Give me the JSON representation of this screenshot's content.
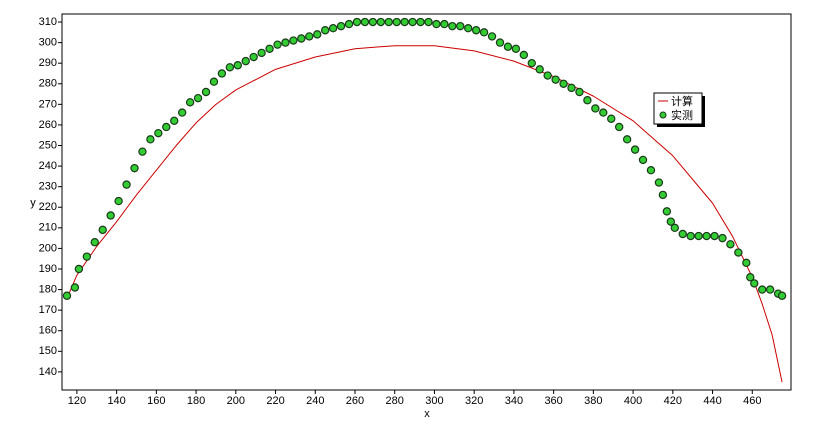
{
  "chart_data": {
    "type": "line",
    "x_label": "x",
    "y_label": "y",
    "xlim": [
      112.5,
      479.5
    ],
    "ylim": [
      131.2,
      313.9
    ],
    "xticks": [
      120,
      140,
      160,
      180,
      200,
      220,
      240,
      260,
      280,
      300,
      320,
      340,
      360,
      380,
      400,
      420,
      440,
      460
    ],
    "yticks": [
      140,
      150,
      160,
      170,
      180,
      190,
      200,
      210,
      220,
      230,
      240,
      250,
      260,
      270,
      280,
      290,
      300,
      310
    ],
    "legend": "right",
    "series": [
      {
        "name": "计算",
        "color": "#cc0000",
        "mode": "line",
        "x": [
          116,
          120,
          130,
          140,
          150,
          160,
          170,
          180,
          190,
          200,
          220,
          240,
          260,
          280,
          300,
          320,
          340,
          360,
          380,
          400,
          420,
          440,
          450,
          460,
          465,
          470,
          475
        ],
        "values": [
          178,
          187,
          201,
          213,
          226,
          238,
          250,
          261,
          270,
          277,
          287,
          293,
          297,
          298.5,
          298.5,
          296,
          291,
          283.5,
          274,
          262,
          245,
          222,
          206,
          186,
          173,
          158,
          135
        ]
      },
      {
        "name": "实测",
        "color": "#33cc33",
        "mode": "markers",
        "x": [
          115,
          119,
          121,
          125,
          129,
          133,
          137,
          141,
          145,
          149,
          153,
          157,
          161,
          165,
          169,
          173,
          177,
          181,
          185,
          189,
          193,
          197,
          201,
          205,
          209,
          213,
          217,
          221,
          225,
          229,
          233,
          237,
          241,
          245,
          249,
          253,
          257,
          261,
          265,
          269,
          273,
          277,
          281,
          285,
          289,
          293,
          297,
          301,
          305,
          309,
          313,
          317,
          321,
          325,
          329,
          333,
          337,
          341,
          345,
          349,
          353,
          357,
          361,
          365,
          369,
          373,
          377,
          381,
          385,
          389,
          393,
          397,
          401,
          405,
          409,
          413,
          415,
          417,
          419,
          421,
          425,
          429,
          433,
          437,
          441,
          445,
          449,
          453,
          457,
          459,
          461,
          465,
          469,
          473,
          475
        ],
        "values": [
          177,
          181,
          190,
          196,
          203,
          209,
          216,
          223,
          231,
          239,
          247,
          253,
          256,
          259,
          262,
          266,
          271,
          273,
          276,
          281,
          285,
          288,
          289,
          291,
          293,
          295,
          297,
          299,
          300,
          301,
          302,
          303,
          304,
          306,
          307,
          308,
          309,
          310,
          310,
          310,
          310,
          310,
          310,
          310,
          310,
          310,
          310,
          309,
          309,
          308,
          308,
          307,
          306,
          305,
          303,
          300,
          298,
          297,
          294,
          290,
          287,
          284,
          282,
          280,
          278,
          276,
          272,
          268,
          266,
          263,
          259,
          253,
          248,
          243,
          238,
          232,
          226,
          218,
          213,
          210,
          207,
          206,
          206,
          206,
          206,
          205,
          202,
          198,
          193,
          186,
          183,
          180,
          180,
          178,
          177
        ]
      }
    ]
  }
}
